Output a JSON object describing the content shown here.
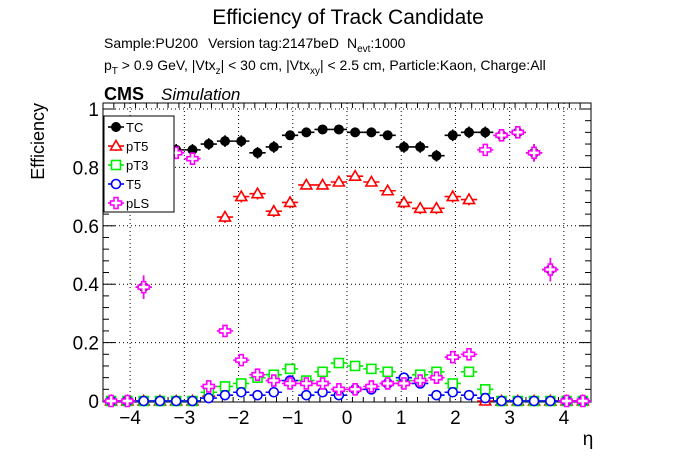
{
  "chart_data": {
    "type": "scatter",
    "title": "Efficiency of Track Candidate",
    "info_line1": {
      "sample": "Sample:PU200",
      "version": "Version tag:2147beD",
      "nevt_main": "N",
      "nevt_sub": "evt",
      "nevt_value": ":1000"
    },
    "info_line2": {
      "p": "p",
      "p_sub": "T",
      "p_rest": " > 0.9 GeV, |Vtx",
      "vz_sub": "z",
      "vz_rest": "| < 30 cm, |Vtx",
      "vxy_sub": "xy",
      "vxy_rest": "| < 2.5 cm, Particle:Kaon, Charge:All"
    },
    "cms_label": "CMS",
    "sim_label": "Simulation",
    "xlabel": "η",
    "ylabel": "Efficiency",
    "xlim": [
      -4.5,
      4.5
    ],
    "ylim": [
      0,
      1.02
    ],
    "grid": true,
    "legend_position": "top-left",
    "xticks": [
      -4,
      -3,
      -2,
      -1,
      0,
      1,
      2,
      3,
      4
    ],
    "xtick_labels": [
      "−4",
      "−3",
      "−2",
      "−1",
      "0",
      "1",
      "2",
      "3",
      "4"
    ],
    "yticks": [
      0,
      0.2,
      0.4,
      0.6,
      0.8,
      1
    ],
    "ytick_labels": [
      "0",
      "0.2",
      "0.4",
      "0.6",
      "0.8",
      "1"
    ],
    "x": [
      -4.35,
      -4.05,
      -3.75,
      -3.45,
      -3.15,
      -2.85,
      -2.55,
      -2.25,
      -1.95,
      -1.65,
      -1.35,
      -1.05,
      -0.75,
      -0.45,
      -0.15,
      0.15,
      0.45,
      0.75,
      1.05,
      1.35,
      1.65,
      1.95,
      2.25,
      2.55,
      2.85,
      3.15,
      3.45,
      3.75,
      4.05,
      4.35
    ],
    "series": [
      {
        "name": "TC",
        "color": "#000000",
        "marker": "filled-circle",
        "values": [
          0,
          0,
          0.39,
          0.89,
          0.86,
          0.86,
          0.88,
          0.89,
          0.89,
          0.85,
          0.87,
          0.91,
          0.92,
          0.93,
          0.93,
          0.92,
          0.92,
          0.91,
          0.87,
          0.87,
          0.84,
          0.91,
          0.92,
          0.92,
          0.91,
          0.92,
          0.85,
          0.45,
          0,
          0
        ],
        "errors": [
          0,
          0,
          0.04,
          0.02,
          0.02,
          0.02,
          0.02,
          0.02,
          0.02,
          0.02,
          0.02,
          0.01,
          0.01,
          0.01,
          0.01,
          0.01,
          0.01,
          0.01,
          0.02,
          0.02,
          0.02,
          0.02,
          0.02,
          0.02,
          0.02,
          0.02,
          0.03,
          0.04,
          0,
          0
        ]
      },
      {
        "name": "pT5",
        "color": "#ff0000",
        "marker": "open-triangle",
        "values": [
          0,
          0,
          0,
          0,
          0,
          0,
          0.03,
          0.63,
          0.7,
          0.71,
          0.65,
          0.68,
          0.74,
          0.74,
          0.75,
          0.77,
          0.75,
          0.72,
          0.68,
          0.66,
          0.66,
          0.7,
          0.69,
          0,
          0,
          0,
          0,
          0,
          0,
          0
        ],
        "errors": [
          0,
          0,
          0,
          0,
          0,
          0,
          0.01,
          0.02,
          0.02,
          0.02,
          0.02,
          0.02,
          0.015,
          0.015,
          0.015,
          0.015,
          0.015,
          0.015,
          0.02,
          0.02,
          0.02,
          0.02,
          0.02,
          0,
          0,
          0,
          0,
          0,
          0,
          0
        ]
      },
      {
        "name": "pT3",
        "color": "#00ee00",
        "marker": "open-square",
        "values": [
          0,
          0,
          0,
          0,
          0,
          0,
          0.03,
          0.05,
          0.06,
          0.08,
          0.09,
          0.11,
          0.07,
          0.1,
          0.13,
          0.12,
          0.11,
          0.1,
          0.07,
          0.09,
          0.1,
          0.06,
          0.1,
          0.04,
          0,
          0,
          0,
          0,
          0,
          0
        ],
        "errors": [
          0,
          0,
          0,
          0,
          0,
          0,
          0.01,
          0.01,
          0.01,
          0.01,
          0.01,
          0.01,
          0.01,
          0.01,
          0.01,
          0.01,
          0.01,
          0.01,
          0.01,
          0.01,
          0.01,
          0.01,
          0.01,
          0.01,
          0,
          0,
          0,
          0,
          0,
          0
        ]
      },
      {
        "name": "T5",
        "color": "#0000ff",
        "marker": "open-circle",
        "values": [
          0,
          0,
          0,
          0,
          0,
          0,
          0.01,
          0.02,
          0.03,
          0.02,
          0.03,
          0.07,
          0.02,
          0.03,
          0.02,
          0.04,
          0.04,
          0.06,
          0.08,
          0.06,
          0.02,
          0.03,
          0.02,
          0.01,
          0,
          0,
          0,
          0,
          0,
          0
        ],
        "errors": [
          0,
          0,
          0,
          0,
          0,
          0,
          0.005,
          0.005,
          0.005,
          0.005,
          0.005,
          0.01,
          0.005,
          0.005,
          0.005,
          0.005,
          0.005,
          0.005,
          0.01,
          0.005,
          0.005,
          0.005,
          0.005,
          0.005,
          0,
          0,
          0,
          0,
          0,
          0
        ]
      },
      {
        "name": "pLS",
        "color": "#ff00ff",
        "marker": "open-cross",
        "values": [
          0,
          0,
          0.39,
          0.89,
          0.85,
          0.83,
          0.05,
          0.24,
          0.14,
          0.09,
          0.07,
          0.06,
          0.06,
          0.06,
          0.04,
          0.04,
          0.05,
          0.06,
          0.06,
          0.07,
          0.08,
          0.15,
          0.16,
          0.86,
          0.91,
          0.92,
          0.85,
          0.45,
          0,
          0
        ],
        "errors": [
          0,
          0,
          0.04,
          0.02,
          0.02,
          0.02,
          0.01,
          0.02,
          0.02,
          0.01,
          0.01,
          0.01,
          0.01,
          0.01,
          0.01,
          0.01,
          0.01,
          0.01,
          0.01,
          0.01,
          0.01,
          0.02,
          0.02,
          0.02,
          0.02,
          0.02,
          0.03,
          0.04,
          0,
          0
        ]
      }
    ]
  }
}
